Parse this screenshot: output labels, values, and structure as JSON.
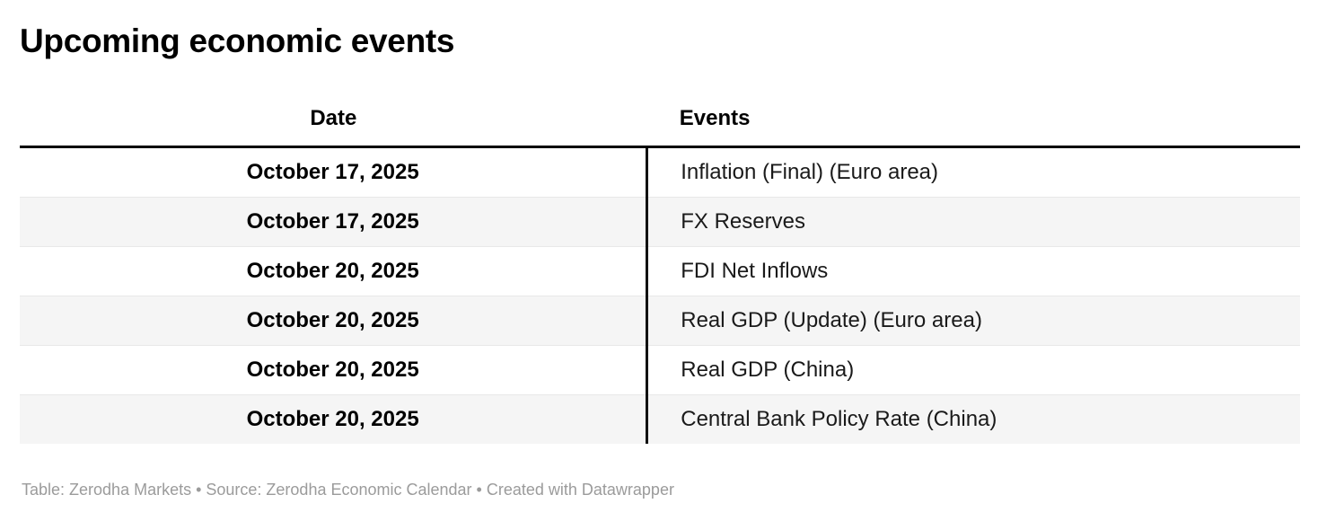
{
  "title": "Upcoming economic events",
  "footer": "Table: Zerodha Markets • Source: Zerodha Economic Calendar • Created with Datawrapper",
  "colors": {
    "header_border": "#000000",
    "column_divider": "#111111",
    "row_alt_background": "#f5f5f5",
    "row_separator": "#e8e8e8",
    "footer_text": "#9b9b9b"
  },
  "chart_data": {
    "type": "table",
    "title": "Upcoming economic events",
    "columns": [
      "Date",
      "Events"
    ],
    "rows": [
      [
        "October 17, 2025",
        "Inflation (Final) (Euro area)"
      ],
      [
        "October 17, 2025",
        "FX Reserves"
      ],
      [
        "October 20, 2025",
        "FDI Net Inflows"
      ],
      [
        "October 20, 2025",
        "Real GDP (Update) (Euro area)"
      ],
      [
        "October 20, 2025",
        "Real GDP (China)"
      ],
      [
        "October 20, 2025",
        "Central Bank Policy Rate (China)"
      ]
    ],
    "footer": "Table: Zerodha Markets • Source: Zerodha Economic Calendar • Created with Datawrapper"
  }
}
